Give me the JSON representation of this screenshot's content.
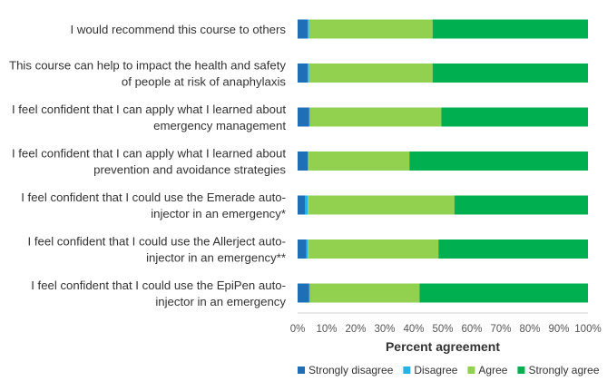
{
  "chart_data": {
    "type": "bar",
    "orientation": "horizontal",
    "stacked": true,
    "title": "",
    "xlabel": "Percent agreement",
    "ylabel": "",
    "xlim": [
      0,
      100
    ],
    "x_ticks": [
      "0%",
      "10%",
      "20%",
      "30%",
      "40%",
      "50%",
      "60%",
      "70%",
      "80%",
      "90%",
      "100%"
    ],
    "legend_position": "bottom",
    "grid": false,
    "categories": [
      [
        "I would recommend this course to others"
      ],
      [
        "This course can help to impact the health and safety",
        "of people at risk of anaphylaxis"
      ],
      [
        "I feel confident that I can apply what I learned about",
        "emergency management"
      ],
      [
        "I feel confident that I can apply what I learned about",
        "prevention and avoidance strategies"
      ],
      [
        "I feel confident that I could use the Emerade auto-",
        "injector in an emergency*"
      ],
      [
        "I feel confident that I could use the Allerject auto-",
        "injector in an emergency**"
      ],
      [
        "I feel confident that I could use the EpiPen auto-",
        "injector in an emergency"
      ]
    ],
    "series": [
      {
        "name": "Strongly disagree",
        "color": "#1F6FB6",
        "values": [
          3.5,
          3.5,
          4.0,
          3.5,
          2.5,
          3.0,
          4.0
        ]
      },
      {
        "name": "Disagree",
        "color": "#27B2E6",
        "values": [
          0.5,
          0.5,
          0.3,
          0.3,
          1.0,
          0.5,
          0.3
        ]
      },
      {
        "name": "Agree",
        "color": "#92D050",
        "values": [
          42.5,
          42.5,
          45.2,
          34.7,
          50.5,
          45.0,
          37.7
        ]
      },
      {
        "name": "Strongly agree",
        "color": "#00B050",
        "values": [
          53.5,
          53.5,
          50.5,
          61.5,
          46.0,
          51.5,
          58.0
        ]
      }
    ]
  }
}
